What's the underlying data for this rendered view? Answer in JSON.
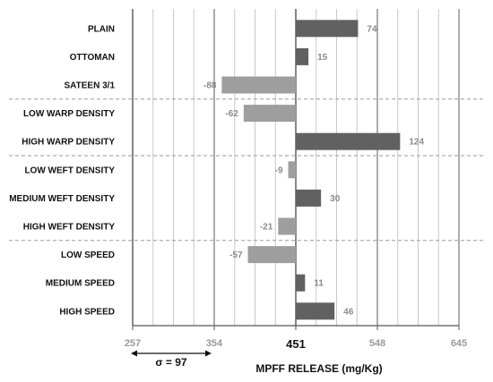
{
  "chart_data": {
    "type": "bar",
    "orientation": "horizontal",
    "reference": 451,
    "xlabel": "MPFF RELEASE (mg/Kg)",
    "xlim": [
      257,
      645
    ],
    "x_ticks": [
      257,
      354,
      451,
      548,
      645
    ],
    "categories": [
      "PLAIN",
      "OTTOMAN",
      "SATEEN 3/1",
      "LOW WARP DENSITY",
      "HIGH WARP DENSITY",
      "LOW WEFT DENSITY",
      "MEDIUM WEFT DENSITY",
      "HIGH WEFT DENSITY",
      "LOW SPEED",
      "MEDIUM SPEED",
      "HIGH SPEED"
    ],
    "values": [
      74,
      15,
      -88,
      -62,
      124,
      -9,
      30,
      -21,
      -57,
      11,
      46
    ],
    "value_labels": [
      "74",
      "15",
      "-88",
      "-62",
      "124",
      "-9",
      "30",
      "-21",
      "-57",
      "11",
      "46"
    ],
    "group_breaks_after": [
      2,
      4,
      7
    ],
    "annotation": "σ = 97",
    "colors": {
      "positive": "#616161",
      "negative": "#9e9e9e",
      "grid": "#c8c8c8",
      "dark_grid": "#6a6a6a"
    },
    "grid": true
  }
}
